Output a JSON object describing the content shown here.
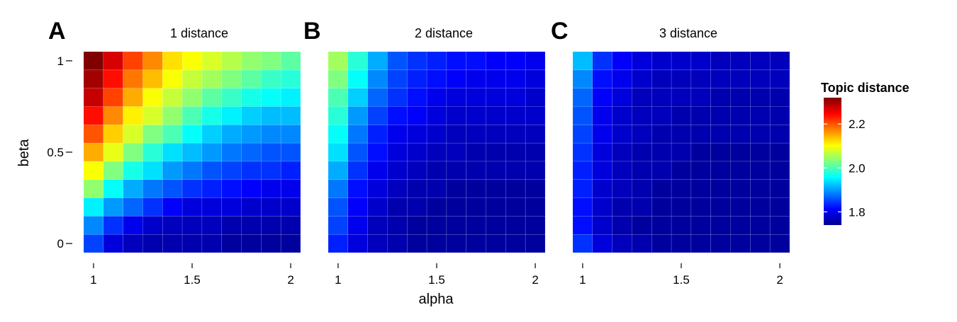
{
  "figure": {
    "xlabel": "alpha",
    "ylabel": "beta",
    "legend": {
      "title": "Topic distance",
      "range": [
        1.74,
        2.32
      ],
      "ticks": [
        {
          "value": 2.2,
          "label": "2.2"
        },
        {
          "value": 2.0,
          "label": "2.0"
        },
        {
          "value": 1.8,
          "label": "1.8"
        }
      ],
      "placement": "right",
      "colormap": [
        "#00008f",
        "#0000ff",
        "#0080ff",
        "#00ffff",
        "#80ff80",
        "#ffff00",
        "#ff8000",
        "#ff0000",
        "#800000"
      ]
    }
  },
  "chart_data": [
    {
      "type": "heatmap",
      "panel_letter": "A",
      "title": "1 distance",
      "xlabel": "alpha",
      "ylabel": "beta",
      "x": [
        1.0,
        1.1,
        1.2,
        1.3,
        1.4,
        1.5,
        1.6,
        1.7,
        1.8,
        1.9,
        2.0
      ],
      "y": [
        0.0,
        0.1,
        0.2,
        0.3,
        0.4,
        0.5,
        0.6,
        0.7,
        0.8,
        0.9,
        1.0
      ],
      "xticks": [
        {
          "value": 1,
          "label": "1"
        },
        {
          "value": 1.5,
          "label": "1.5"
        },
        {
          "value": 2,
          "label": "2"
        }
      ],
      "yticks": [
        {
          "value": 1,
          "label": "1"
        },
        {
          "value": 0.5,
          "label": "0.5"
        },
        {
          "value": 0,
          "label": "0"
        }
      ],
      "z": [
        [
          1.85,
          1.79,
          1.77,
          1.76,
          1.76,
          1.76,
          1.76,
          1.75,
          1.75,
          1.75,
          1.75
        ],
        [
          1.89,
          1.84,
          1.8,
          1.78,
          1.77,
          1.77,
          1.77,
          1.76,
          1.76,
          1.76,
          1.76
        ],
        [
          1.95,
          1.9,
          1.87,
          1.84,
          1.81,
          1.79,
          1.79,
          1.79,
          1.78,
          1.78,
          1.78
        ],
        [
          2.04,
          1.96,
          1.91,
          1.88,
          1.86,
          1.84,
          1.83,
          1.82,
          1.81,
          1.8,
          1.8
        ],
        [
          2.1,
          2.03,
          1.97,
          1.94,
          1.9,
          1.88,
          1.86,
          1.85,
          1.84,
          1.84,
          1.83
        ],
        [
          2.15,
          2.09,
          2.03,
          1.98,
          1.94,
          1.92,
          1.9,
          1.88,
          1.87,
          1.86,
          1.86
        ],
        [
          2.2,
          2.13,
          2.08,
          2.03,
          2.0,
          1.96,
          1.93,
          1.91,
          1.9,
          1.89,
          1.89
        ],
        [
          2.24,
          2.17,
          2.11,
          2.08,
          2.04,
          2.0,
          1.97,
          1.95,
          1.93,
          1.92,
          1.92
        ],
        [
          2.28,
          2.21,
          2.15,
          2.1,
          2.07,
          2.04,
          2.01,
          1.99,
          1.97,
          1.96,
          1.95
        ],
        [
          2.3,
          2.24,
          2.18,
          2.14,
          2.1,
          2.07,
          2.05,
          2.03,
          2.01,
          1.99,
          1.98
        ],
        [
          2.32,
          2.27,
          2.21,
          2.17,
          2.12,
          2.1,
          2.08,
          2.06,
          2.04,
          2.03,
          2.01
        ]
      ]
    },
    {
      "type": "heatmap",
      "panel_letter": "B",
      "title": "2 distance",
      "xlabel": "alpha",
      "ylabel": "beta",
      "x": [
        1.0,
        1.1,
        1.2,
        1.3,
        1.4,
        1.5,
        1.6,
        1.7,
        1.8,
        1.9,
        2.0
      ],
      "y": [
        0.0,
        0.1,
        0.2,
        0.3,
        0.4,
        0.5,
        0.6,
        0.7,
        0.8,
        0.9,
        1.0
      ],
      "xticks": [
        {
          "value": 1,
          "label": "1"
        },
        {
          "value": 1.5,
          "label": "1.5"
        },
        {
          "value": 2,
          "label": "2"
        }
      ],
      "yticks": [
        {
          "value": 1,
          "label": "1"
        },
        {
          "value": 0.5,
          "label": "0.5"
        },
        {
          "value": 0,
          "label": "0"
        }
      ],
      "z": [
        [
          1.83,
          1.79,
          1.77,
          1.76,
          1.75,
          1.75,
          1.75,
          1.75,
          1.75,
          1.75,
          1.75
        ],
        [
          1.85,
          1.8,
          1.77,
          1.76,
          1.75,
          1.75,
          1.75,
          1.75,
          1.75,
          1.75,
          1.75
        ],
        [
          1.86,
          1.81,
          1.78,
          1.76,
          1.76,
          1.75,
          1.75,
          1.75,
          1.75,
          1.75,
          1.75
        ],
        [
          1.88,
          1.82,
          1.79,
          1.77,
          1.76,
          1.76,
          1.75,
          1.75,
          1.75,
          1.75,
          1.75
        ],
        [
          1.91,
          1.84,
          1.8,
          1.78,
          1.77,
          1.76,
          1.76,
          1.76,
          1.76,
          1.76,
          1.76
        ],
        [
          1.94,
          1.86,
          1.82,
          1.79,
          1.78,
          1.77,
          1.77,
          1.76,
          1.76,
          1.76,
          1.76
        ],
        [
          1.96,
          1.88,
          1.83,
          1.8,
          1.79,
          1.78,
          1.77,
          1.77,
          1.77,
          1.77,
          1.77
        ],
        [
          1.98,
          1.9,
          1.85,
          1.82,
          1.81,
          1.79,
          1.78,
          1.78,
          1.78,
          1.78,
          1.78
        ],
        [
          2.0,
          1.93,
          1.87,
          1.84,
          1.82,
          1.8,
          1.79,
          1.79,
          1.79,
          1.79,
          1.78
        ],
        [
          2.03,
          1.96,
          1.89,
          1.85,
          1.83,
          1.82,
          1.81,
          1.8,
          1.8,
          1.8,
          1.79
        ],
        [
          2.05,
          1.98,
          1.91,
          1.86,
          1.84,
          1.83,
          1.82,
          1.82,
          1.81,
          1.81,
          1.8
        ]
      ]
    },
    {
      "type": "heatmap",
      "panel_letter": "C",
      "title": "3 distance",
      "xlabel": "alpha",
      "ylabel": "beta",
      "x": [
        1.0,
        1.1,
        1.2,
        1.3,
        1.4,
        1.5,
        1.6,
        1.7,
        1.8,
        1.9,
        2.0
      ],
      "y": [
        0.0,
        0.1,
        0.2,
        0.3,
        0.4,
        0.5,
        0.6,
        0.7,
        0.8,
        0.9,
        1.0
      ],
      "xticks": [
        {
          "value": 1,
          "label": "1"
        },
        {
          "value": 1.5,
          "label": "1.5"
        },
        {
          "value": 2,
          "label": "2"
        }
      ],
      "yticks": [
        {
          "value": 1,
          "label": "1"
        },
        {
          "value": 0.5,
          "label": "0.5"
        },
        {
          "value": 0,
          "label": "0"
        }
      ],
      "z": [
        [
          1.84,
          1.79,
          1.77,
          1.76,
          1.75,
          1.75,
          1.75,
          1.75,
          1.75,
          1.75,
          1.75
        ],
        [
          1.82,
          1.78,
          1.76,
          1.75,
          1.75,
          1.75,
          1.75,
          1.75,
          1.75,
          1.75,
          1.75
        ],
        [
          1.82,
          1.78,
          1.76,
          1.76,
          1.75,
          1.75,
          1.75,
          1.75,
          1.75,
          1.75,
          1.75
        ],
        [
          1.83,
          1.78,
          1.77,
          1.76,
          1.75,
          1.75,
          1.75,
          1.75,
          1.75,
          1.75,
          1.75
        ],
        [
          1.83,
          1.79,
          1.77,
          1.76,
          1.76,
          1.75,
          1.75,
          1.75,
          1.75,
          1.75,
          1.75
        ],
        [
          1.84,
          1.79,
          1.77,
          1.76,
          1.76,
          1.76,
          1.75,
          1.75,
          1.75,
          1.75,
          1.75
        ],
        [
          1.85,
          1.8,
          1.78,
          1.77,
          1.76,
          1.76,
          1.76,
          1.76,
          1.76,
          1.76,
          1.76
        ],
        [
          1.86,
          1.8,
          1.78,
          1.77,
          1.77,
          1.76,
          1.76,
          1.76,
          1.76,
          1.76,
          1.76
        ],
        [
          1.87,
          1.81,
          1.79,
          1.77,
          1.77,
          1.77,
          1.77,
          1.76,
          1.76,
          1.76,
          1.76
        ],
        [
          1.89,
          1.82,
          1.8,
          1.78,
          1.77,
          1.77,
          1.77,
          1.77,
          1.77,
          1.77,
          1.77
        ],
        [
          1.92,
          1.84,
          1.81,
          1.79,
          1.78,
          1.78,
          1.78,
          1.77,
          1.77,
          1.77,
          1.77
        ]
      ]
    }
  ]
}
